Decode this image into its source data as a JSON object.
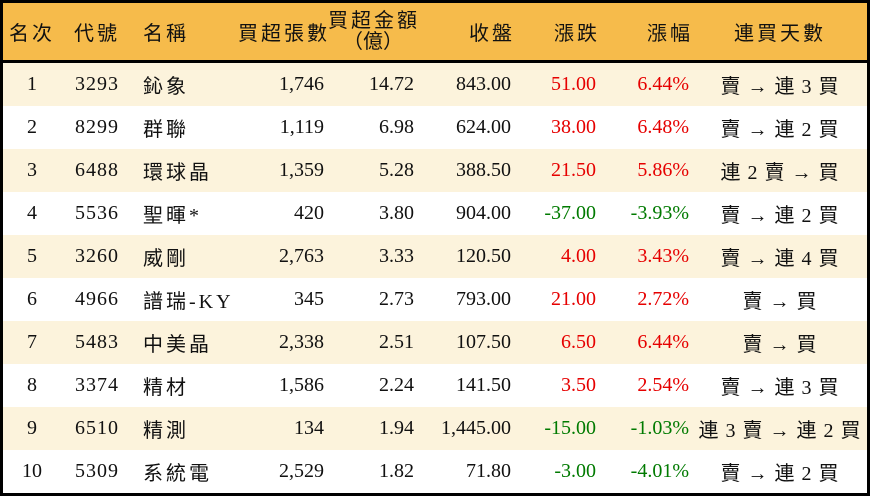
{
  "colors": {
    "header_bg": "#F6BB4B",
    "row_alt_bg": "#FCF3DC",
    "up": "#E60000",
    "down": "#007A00",
    "border": "#000000",
    "text": "#111111"
  },
  "chart_data": {
    "type": "table",
    "title": "",
    "columns": [
      {
        "key": "rank",
        "label": "名次"
      },
      {
        "key": "code",
        "label": "代號"
      },
      {
        "key": "name",
        "label": "名稱"
      },
      {
        "key": "volume",
        "label": "買超張數"
      },
      {
        "key": "amount",
        "label": "買超金額",
        "sublabel": "（億）"
      },
      {
        "key": "close",
        "label": "收盤"
      },
      {
        "key": "change",
        "label": "漲跌"
      },
      {
        "key": "pct",
        "label": "漲幅"
      },
      {
        "key": "streak",
        "label": "連買天數"
      }
    ],
    "rows": [
      {
        "rank": "1",
        "code": "3293",
        "name": "鈊象",
        "volume": "1,746",
        "amount": "14.72",
        "close": "843.00",
        "change": "51.00",
        "pct": "6.44%",
        "dir": "up",
        "streak": "賣 → 連 3 買"
      },
      {
        "rank": "2",
        "code": "8299",
        "name": "群聯",
        "volume": "1,119",
        "amount": "6.98",
        "close": "624.00",
        "change": "38.00",
        "pct": "6.48%",
        "dir": "up",
        "streak": "賣 → 連 2 買"
      },
      {
        "rank": "3",
        "code": "6488",
        "name": "環球晶",
        "volume": "1,359",
        "amount": "5.28",
        "close": "388.50",
        "change": "21.50",
        "pct": "5.86%",
        "dir": "up",
        "streak": "連 2 賣 → 買"
      },
      {
        "rank": "4",
        "code": "5536",
        "name": "聖暉*",
        "volume": "420",
        "amount": "3.80",
        "close": "904.00",
        "change": "-37.00",
        "pct": "-3.93%",
        "dir": "down",
        "streak": "賣 → 連 2 買"
      },
      {
        "rank": "5",
        "code": "3260",
        "name": "威剛",
        "volume": "2,763",
        "amount": "3.33",
        "close": "120.50",
        "change": "4.00",
        "pct": "3.43%",
        "dir": "up",
        "streak": "賣 → 連 4 買"
      },
      {
        "rank": "6",
        "code": "4966",
        "name": "譜瑞-KY",
        "volume": "345",
        "amount": "2.73",
        "close": "793.00",
        "change": "21.00",
        "pct": "2.72%",
        "dir": "up",
        "streak": "賣 → 買"
      },
      {
        "rank": "7",
        "code": "5483",
        "name": "中美晶",
        "volume": "2,338",
        "amount": "2.51",
        "close": "107.50",
        "change": "6.50",
        "pct": "6.44%",
        "dir": "up",
        "streak": "賣 → 買"
      },
      {
        "rank": "8",
        "code": "3374",
        "name": "精材",
        "volume": "1,586",
        "amount": "2.24",
        "close": "141.50",
        "change": "3.50",
        "pct": "2.54%",
        "dir": "up",
        "streak": "賣 → 連 3 買"
      },
      {
        "rank": "9",
        "code": "6510",
        "name": "精測",
        "volume": "134",
        "amount": "1.94",
        "close": "1,445.00",
        "change": "-15.00",
        "pct": "-1.03%",
        "dir": "down",
        "streak": "連 3 賣 → 連 2 買"
      },
      {
        "rank": "10",
        "code": "5309",
        "name": "系統電",
        "volume": "2,529",
        "amount": "1.82",
        "close": "71.80",
        "change": "-3.00",
        "pct": "-4.01%",
        "dir": "down",
        "streak": "賣 → 連 2 買"
      }
    ]
  }
}
